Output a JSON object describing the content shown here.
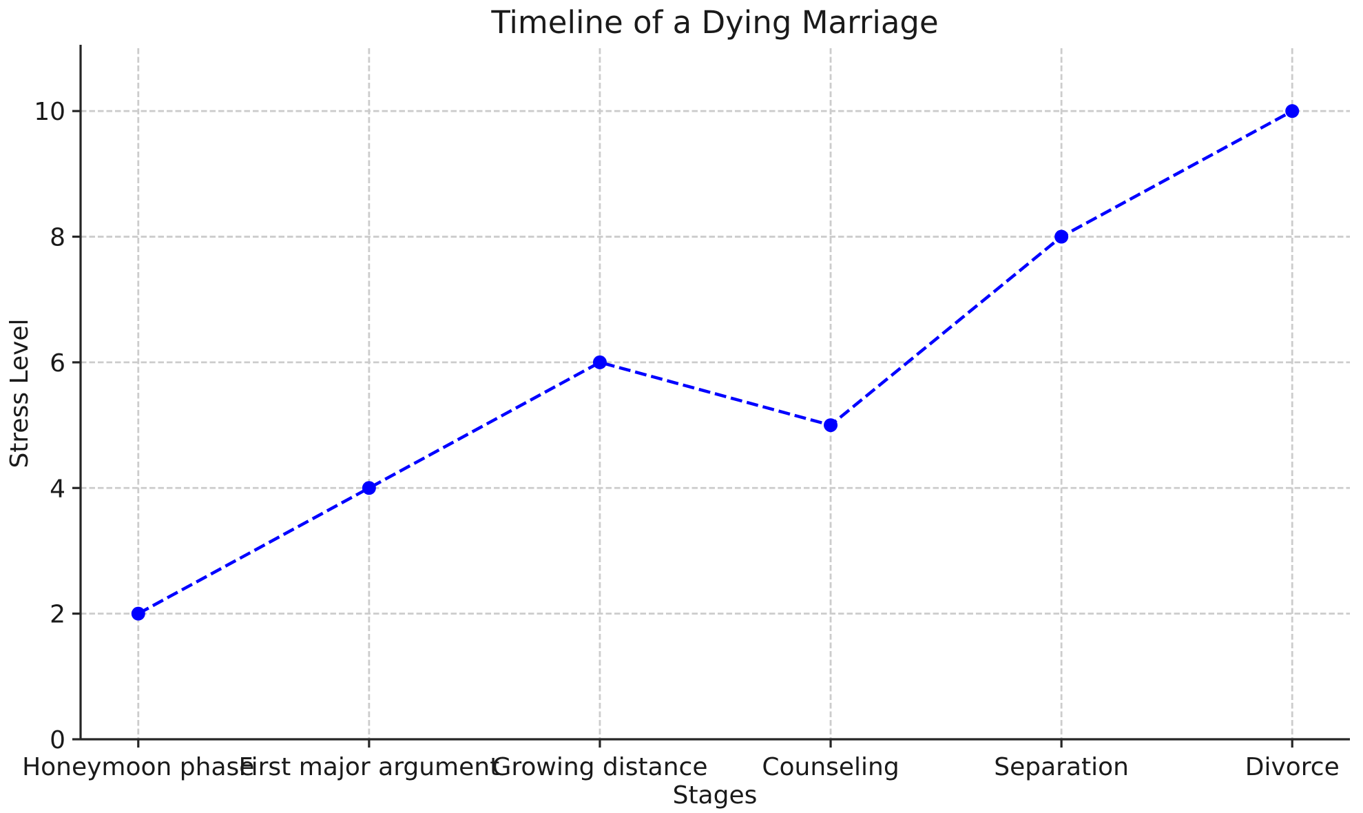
{
  "title": "Timeline of a Dying Marriage",
  "chart_data": {
    "type": "line",
    "title": "Timeline of a Dying Marriage",
    "xlabel": "Stages",
    "ylabel": "Stress Level",
    "categories": [
      "Honeymoon phase",
      "First major argument",
      "Growing distance",
      "Counseling",
      "Separation",
      "Divorce"
    ],
    "values": [
      2,
      4,
      6,
      5,
      8,
      10
    ],
    "series": [
      {
        "name": "Stress Level",
        "values": [
          2,
          4,
          6,
          5,
          8,
          10
        ]
      }
    ],
    "ylim": [
      0,
      11
    ],
    "yticks": [
      0,
      2,
      4,
      6,
      8,
      10
    ],
    "grid": true,
    "legend": "none",
    "line_color": "#0000ff",
    "line_style": "dashed",
    "marker": "circle",
    "grid_color": "#cccccc",
    "spine_color": "#262626",
    "tick_color": "#262626",
    "text_color": "#1a1a1a",
    "background_color": "#ffffff"
  }
}
